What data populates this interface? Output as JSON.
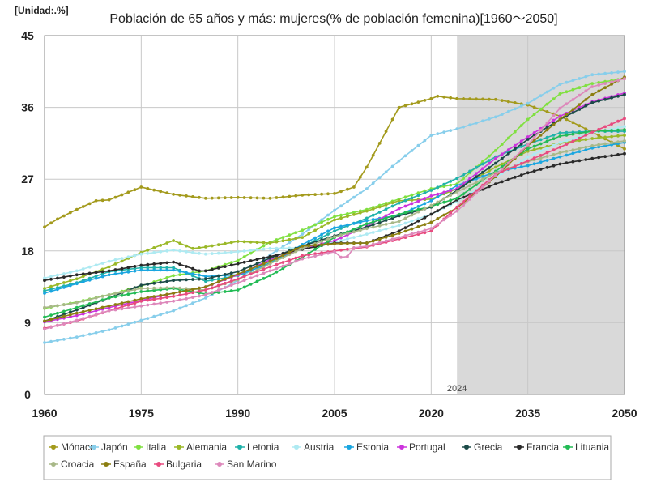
{
  "chart_data": {
    "type": "line",
    "title": "Población de 65 años y más: mujeres(% de población femenina)[1960～2050]",
    "unit_label": "[Unidad:.%]",
    "xlabel": "",
    "ylabel": "",
    "xlim": [
      1960,
      2050
    ],
    "ylim": [
      0,
      45
    ],
    "x_ticks": [
      1960,
      1975,
      1990,
      2005,
      2020,
      2035,
      2050
    ],
    "y_ticks": [
      0,
      9,
      18,
      27,
      36,
      45
    ],
    "forecast_start": 2024,
    "forecast_label": "2024",
    "grid": true,
    "series": [
      {
        "name": "Mónaco",
        "color": "#a39a1c",
        "points": [
          [
            1960,
            21
          ],
          [
            1962,
            22
          ],
          [
            1965,
            23.2
          ],
          [
            1968,
            24.3
          ],
          [
            1970,
            24.4
          ],
          [
            1975,
            26
          ],
          [
            1980,
            25.1
          ],
          [
            1985,
            24.6
          ],
          [
            1990,
            24.7
          ],
          [
            1995,
            24.6
          ],
          [
            2000,
            25
          ],
          [
            2005,
            25.2
          ],
          [
            2008,
            26
          ],
          [
            2010,
            28.5
          ],
          [
            2013,
            33
          ],
          [
            2015,
            36
          ],
          [
            2020,
            37.1
          ],
          [
            2021,
            37.4
          ],
          [
            2024,
            37.1
          ],
          [
            2030,
            37
          ],
          [
            2035,
            36.3
          ],
          [
            2040,
            34.9
          ],
          [
            2045,
            32.9
          ],
          [
            2050,
            30.8
          ]
        ]
      },
      {
        "name": "Japón",
        "color": "#87ceeb",
        "points": [
          [
            1960,
            6.5
          ],
          [
            1965,
            7.2
          ],
          [
            1970,
            8.1
          ],
          [
            1975,
            9.3
          ],
          [
            1980,
            10.5
          ],
          [
            1985,
            12.1
          ],
          [
            1990,
            14.3
          ],
          [
            1995,
            17.5
          ],
          [
            2000,
            20.1
          ],
          [
            2005,
            23.1
          ],
          [
            2010,
            25.8
          ],
          [
            2015,
            29.3
          ],
          [
            2020,
            32.5
          ],
          [
            2024,
            33.3
          ],
          [
            2030,
            34.8
          ],
          [
            2035,
            36.5
          ],
          [
            2040,
            38.9
          ],
          [
            2045,
            40.1
          ],
          [
            2050,
            40.5
          ]
        ]
      },
      {
        "name": "Italia",
        "color": "#80e040",
        "points": [
          [
            1960,
            10.8
          ],
          [
            1965,
            11.6
          ],
          [
            1970,
            12.5
          ],
          [
            1975,
            13.6
          ],
          [
            1980,
            14.9
          ],
          [
            1985,
            15.5
          ],
          [
            1990,
            16.8
          ],
          [
            1995,
            19.1
          ],
          [
            2000,
            20.6
          ],
          [
            2005,
            22.3
          ],
          [
            2010,
            23.2
          ],
          [
            2015,
            24.5
          ],
          [
            2020,
            25.8
          ],
          [
            2024,
            26.4
          ],
          [
            2030,
            30.6
          ],
          [
            2035,
            34.5
          ],
          [
            2040,
            37.7
          ],
          [
            2045,
            39
          ],
          [
            2050,
            39.6
          ]
        ]
      },
      {
        "name": "Alemania",
        "color": "#9ab827",
        "points": [
          [
            1960,
            13.3
          ],
          [
            1965,
            14.5
          ],
          [
            1970,
            16
          ],
          [
            1975,
            17.8
          ],
          [
            1980,
            19.3
          ],
          [
            1983,
            18.3
          ],
          [
            1985,
            18.5
          ],
          [
            1990,
            19.2
          ],
          [
            1995,
            19
          ],
          [
            2000,
            19.7
          ],
          [
            2005,
            21.9
          ],
          [
            2010,
            23
          ],
          [
            2015,
            24.3
          ],
          [
            2020,
            24.5
          ],
          [
            2024,
            25.8
          ],
          [
            2030,
            28.5
          ],
          [
            2035,
            30.5
          ],
          [
            2040,
            31.5
          ],
          [
            2045,
            32.1
          ],
          [
            2050,
            32.5
          ]
        ]
      },
      {
        "name": "Letonia",
        "color": "#20b2aa",
        "points": [
          [
            1960,
            13
          ],
          [
            1965,
            14
          ],
          [
            1970,
            15.4
          ],
          [
            1975,
            15.9
          ],
          [
            1980,
            15.9
          ],
          [
            1985,
            14.2
          ],
          [
            1990,
            14.9
          ],
          [
            1995,
            16.5
          ],
          [
            2000,
            18.5
          ],
          [
            2005,
            20.5
          ],
          [
            2010,
            22.1
          ],
          [
            2015,
            24
          ],
          [
            2020,
            25.6
          ],
          [
            2024,
            27.1
          ],
          [
            2030,
            29.8
          ],
          [
            2035,
            31.4
          ],
          [
            2040,
            32.8
          ],
          [
            2045,
            33
          ],
          [
            2050,
            33
          ]
        ]
      },
      {
        "name": "Austria",
        "color": "#aeeaf2",
        "points": [
          [
            1960,
            14.6
          ],
          [
            1965,
            15.5
          ],
          [
            1970,
            16.7
          ],
          [
            1975,
            17.6
          ],
          [
            1980,
            18.1
          ],
          [
            1985,
            17.6
          ],
          [
            1990,
            17.9
          ],
          [
            1995,
            18.3
          ],
          [
            2000,
            18.4
          ],
          [
            2005,
            19.1
          ],
          [
            2010,
            20.1
          ],
          [
            2015,
            21.2
          ],
          [
            2020,
            22.6
          ],
          [
            2024,
            24.2
          ],
          [
            2030,
            27.2
          ],
          [
            2035,
            29.8
          ],
          [
            2040,
            31.6
          ],
          [
            2045,
            32.8
          ],
          [
            2050,
            33.6
          ]
        ]
      },
      {
        "name": "Estonia",
        "color": "#1aa6e0",
        "points": [
          [
            1960,
            12.7
          ],
          [
            1965,
            13.9
          ],
          [
            1970,
            15
          ],
          [
            1975,
            15.6
          ],
          [
            1980,
            15.6
          ],
          [
            1985,
            14.8
          ],
          [
            1990,
            15
          ],
          [
            1995,
            16.4
          ],
          [
            2000,
            18.8
          ],
          [
            2005,
            20.9
          ],
          [
            2010,
            21.8
          ],
          [
            2015,
            22.5
          ],
          [
            2020,
            24.3
          ],
          [
            2024,
            26.2
          ],
          [
            2030,
            27.9
          ],
          [
            2035,
            28.7
          ],
          [
            2040,
            29.8
          ],
          [
            2045,
            30.9
          ],
          [
            2050,
            31.6
          ]
        ]
      },
      {
        "name": "Portugal",
        "color": "#cc33dd",
        "points": [
          [
            1960,
            9.1
          ],
          [
            1965,
            9.9
          ],
          [
            1970,
            10.9
          ],
          [
            1975,
            11.8
          ],
          [
            1980,
            12.7
          ],
          [
            1985,
            13.5
          ],
          [
            1990,
            15
          ],
          [
            1995,
            16.9
          ],
          [
            2000,
            18.3
          ],
          [
            2005,
            19.3
          ],
          [
            2010,
            21.1
          ],
          [
            2015,
            23.3
          ],
          [
            2020,
            24.9
          ],
          [
            2024,
            25.8
          ],
          [
            2030,
            29.6
          ],
          [
            2035,
            32.3
          ],
          [
            2040,
            34.9
          ],
          [
            2045,
            36.7
          ],
          [
            2050,
            37.8
          ]
        ]
      },
      {
        "name": "Grecia",
        "color": "#1b4a48",
        "points": [
          [
            1960,
            9.2
          ],
          [
            1965,
            10.6
          ],
          [
            1970,
            12.1
          ],
          [
            1975,
            13.7
          ],
          [
            1980,
            14.3
          ],
          [
            1985,
            14.5
          ],
          [
            1990,
            15.4
          ],
          [
            1995,
            17.1
          ],
          [
            2000,
            18.6
          ],
          [
            2005,
            19.9
          ],
          [
            2010,
            21
          ],
          [
            2015,
            22.4
          ],
          [
            2020,
            23.5
          ],
          [
            2024,
            25.6
          ],
          [
            2030,
            29
          ],
          [
            2035,
            32
          ],
          [
            2040,
            34.5
          ],
          [
            2045,
            36.6
          ],
          [
            2050,
            37.6
          ]
        ]
      },
      {
        "name": "Francia",
        "color": "#2a2a2a",
        "points": [
          [
            1960,
            14.3
          ],
          [
            1965,
            15
          ],
          [
            1970,
            15.5
          ],
          [
            1975,
            16.2
          ],
          [
            1980,
            16.6
          ],
          [
            1984,
            15.5
          ],
          [
            1985,
            15.5
          ],
          [
            1990,
            16.4
          ],
          [
            1995,
            17.3
          ],
          [
            2000,
            18.2
          ],
          [
            2005,
            19
          ],
          [
            2010,
            19
          ],
          [
            2015,
            20.5
          ],
          [
            2020,
            22.6
          ],
          [
            2024,
            24.4
          ],
          [
            2030,
            26.4
          ],
          [
            2035,
            27.8
          ],
          [
            2040,
            28.9
          ],
          [
            2045,
            29.6
          ],
          [
            2050,
            30.2
          ]
        ]
      },
      {
        "name": "Lituania",
        "color": "#22bb55",
        "points": [
          [
            1960,
            9.7
          ],
          [
            1965,
            10.9
          ],
          [
            1970,
            12.1
          ],
          [
            1975,
            12.9
          ],
          [
            1980,
            13.3
          ],
          [
            1985,
            12.6
          ],
          [
            1990,
            13.1
          ],
          [
            1995,
            14.9
          ],
          [
            2000,
            17.2
          ],
          [
            2005,
            19.7
          ],
          [
            2010,
            21.4
          ],
          [
            2015,
            22.6
          ],
          [
            2020,
            23.6
          ],
          [
            2024,
            24.6
          ],
          [
            2030,
            28
          ],
          [
            2035,
            30.8
          ],
          [
            2040,
            32.4
          ],
          [
            2045,
            33
          ],
          [
            2050,
            33.2
          ]
        ]
      },
      {
        "name": "Croacia",
        "color": "#a8b888",
        "points": [
          [
            1960,
            10.9
          ],
          [
            1965,
            11.5
          ],
          [
            1970,
            12.5
          ],
          [
            1975,
            13.3
          ],
          [
            1980,
            13.4
          ],
          [
            1985,
            13.1
          ],
          [
            1990,
            14.4
          ],
          [
            1995,
            16.4
          ],
          [
            2000,
            18.3
          ],
          [
            2005,
            19.8
          ],
          [
            2010,
            20.8
          ],
          [
            2015,
            21.7
          ],
          [
            2020,
            23.7
          ],
          [
            2024,
            25.4
          ],
          [
            2030,
            27.8
          ],
          [
            2035,
            29.2
          ],
          [
            2040,
            30.3
          ],
          [
            2045,
            31.2
          ],
          [
            2050,
            31.8
          ]
        ]
      },
      {
        "name": "España",
        "color": "#8b7e10",
        "points": [
          [
            1960,
            9.2
          ],
          [
            1965,
            10.2
          ],
          [
            1970,
            11.1
          ],
          [
            1975,
            12
          ],
          [
            1980,
            12.7
          ],
          [
            1985,
            13.5
          ],
          [
            1990,
            15.1
          ],
          [
            1995,
            16.7
          ],
          [
            2000,
            18.6
          ],
          [
            2005,
            18.9
          ],
          [
            2010,
            19
          ],
          [
            2015,
            20.2
          ],
          [
            2020,
            21.6
          ],
          [
            2024,
            23.4
          ],
          [
            2030,
            27.3
          ],
          [
            2035,
            31.2
          ],
          [
            2040,
            34.5
          ],
          [
            2045,
            37.6
          ],
          [
            2050,
            39.8
          ]
        ]
      },
      {
        "name": "Bulgaria",
        "color": "#e84a7f",
        "points": [
          [
            1960,
            8.3
          ],
          [
            1965,
            9.2
          ],
          [
            1970,
            10.5
          ],
          [
            1975,
            11.7
          ],
          [
            1980,
            12.3
          ],
          [
            1985,
            13.1
          ],
          [
            1990,
            14.5
          ],
          [
            1995,
            16
          ],
          [
            2000,
            17.4
          ],
          [
            2005,
            18
          ],
          [
            2010,
            18.5
          ],
          [
            2015,
            19.5
          ],
          [
            2020,
            20.5
          ],
          [
            2024,
            23.5
          ],
          [
            2030,
            27.6
          ],
          [
            2035,
            29.3
          ],
          [
            2040,
            31
          ],
          [
            2045,
            32.9
          ],
          [
            2050,
            34.6
          ]
        ]
      },
      {
        "name": "San Marino",
        "color": "#dd88bb",
        "points": [
          [
            1960,
            8.2
          ],
          [
            1965,
            9.3
          ],
          [
            1970,
            10.5
          ],
          [
            1975,
            11.1
          ],
          [
            1980,
            11.7
          ],
          [
            1985,
            12.5
          ],
          [
            1990,
            14
          ],
          [
            1995,
            15.5
          ],
          [
            2000,
            17
          ],
          [
            2005,
            17.9
          ],
          [
            2006,
            17.2
          ],
          [
            2007,
            17.3
          ],
          [
            2008,
            18.4
          ],
          [
            2010,
            18.6
          ],
          [
            2015,
            19.7
          ],
          [
            2020,
            20.8
          ],
          [
            2024,
            23
          ],
          [
            2030,
            27.5
          ],
          [
            2035,
            31.3
          ],
          [
            2040,
            35.9
          ],
          [
            2045,
            38.6
          ],
          [
            2050,
            39.6
          ]
        ]
      }
    ]
  }
}
